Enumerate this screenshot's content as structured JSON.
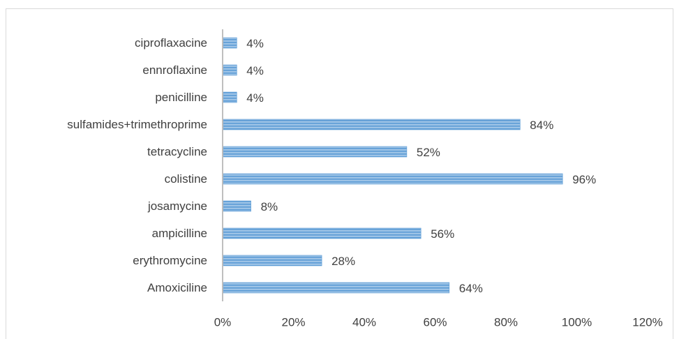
{
  "chart_data": {
    "type": "bar",
    "orientation": "horizontal",
    "title": "",
    "xlabel": "",
    "ylabel": "",
    "categories": [
      "Amoxiciline",
      "erythromycine",
      "ampicilline",
      "josamycine",
      "colistine",
      "tetracycline",
      "sulfamides+trimethroprime",
      "penicilline",
      "ennroflaxine",
      "ciproflaxacine"
    ],
    "values": [
      64,
      28,
      56,
      8,
      96,
      52,
      84,
      4,
      4,
      4
    ],
    "value_labels": [
      "64%",
      "28%",
      "56%",
      "8%",
      "96%",
      "52%",
      "84%",
      "4%",
      "4%",
      "4%"
    ],
    "xlim": [
      0,
      120
    ],
    "xticks": [
      0,
      20,
      40,
      60,
      80,
      100,
      120
    ],
    "xtick_labels": [
      "0%",
      "20%",
      "40%",
      "60%",
      "80%",
      "100%",
      "120%"
    ],
    "grid": false,
    "legend": "none",
    "colors": {
      "bar_fill": "#9dc3e6",
      "bar_stripe": "#5b9bd5",
      "axis": "#bfbfbf",
      "text": "#404040"
    }
  }
}
